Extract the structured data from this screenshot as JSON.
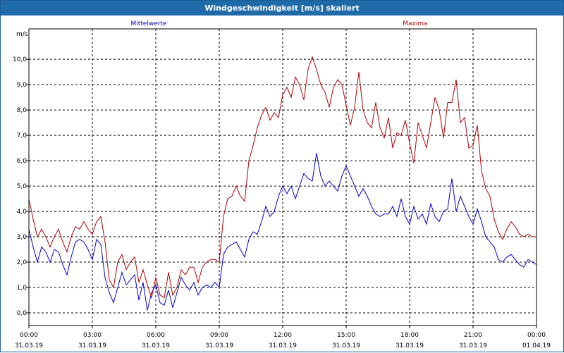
{
  "window": {
    "title": "Windgeschwindigkeit [m/s] skaliert"
  },
  "chart_data": {
    "type": "line",
    "title": "Windgeschwindigkeit [m/s] skaliert",
    "ylabel": "m/s",
    "ylim": [
      -0.5,
      11.2
    ],
    "y_ticks": [
      "0,0",
      "1,0",
      "2,0",
      "3,0",
      "4,0",
      "5,0",
      "6,0",
      "7,0",
      "8,0",
      "9,0",
      "10,0"
    ],
    "x_ticks": [
      {
        "time": "00:00",
        "date": "31.03.19"
      },
      {
        "time": "03:00",
        "date": "31.03.19"
      },
      {
        "time": "06:00",
        "date": "31.03.19"
      },
      {
        "time": "09:00",
        "date": "31.03.19"
      },
      {
        "time": "12:00",
        "date": "31.03.19"
      },
      {
        "time": "15:00",
        "date": "31.03.19"
      },
      {
        "time": "18:00",
        "date": "31.03.19"
      },
      {
        "time": "21:00",
        "date": "31.03.19"
      },
      {
        "time": "00:00",
        "date": "01.04.19"
      }
    ],
    "grid": true,
    "x_unit": "hours since 00:00 31.03.19",
    "series": [
      {
        "name": "Mittelwerte",
        "color": "#0000cc",
        "legend_position": "top-left",
        "values": [
          [
            0.0,
            3.3
          ],
          [
            0.2,
            2.6
          ],
          [
            0.4,
            2.0
          ],
          [
            0.6,
            2.6
          ],
          [
            0.8,
            2.4
          ],
          [
            1.0,
            2.0
          ],
          [
            1.2,
            2.5
          ],
          [
            1.4,
            2.4
          ],
          [
            1.6,
            1.9
          ],
          [
            1.8,
            1.5
          ],
          [
            2.0,
            2.2
          ],
          [
            2.2,
            2.8
          ],
          [
            2.4,
            2.9
          ],
          [
            2.6,
            2.8
          ],
          [
            2.8,
            2.5
          ],
          [
            3.0,
            2.1
          ],
          [
            3.2,
            2.9
          ],
          [
            3.4,
            2.7
          ],
          [
            3.6,
            1.4
          ],
          [
            3.8,
            0.8
          ],
          [
            4.0,
            0.4
          ],
          [
            4.2,
            1.0
          ],
          [
            4.4,
            1.6
          ],
          [
            4.6,
            1.1
          ],
          [
            4.8,
            1.3
          ],
          [
            5.0,
            1.5
          ],
          [
            5.2,
            0.5
          ],
          [
            5.4,
            1.2
          ],
          [
            5.6,
            0.1
          ],
          [
            5.8,
            0.8
          ],
          [
            6.0,
            1.1
          ],
          [
            6.2,
            0.4
          ],
          [
            6.4,
            0.3
          ],
          [
            6.6,
            0.9
          ],
          [
            6.8,
            0.2
          ],
          [
            7.0,
            0.8
          ],
          [
            7.2,
            1.4
          ],
          [
            7.4,
            1.1
          ],
          [
            7.6,
            0.9
          ],
          [
            7.8,
            1.2
          ],
          [
            8.0,
            0.7
          ],
          [
            8.2,
            1.0
          ],
          [
            8.4,
            1.1
          ],
          [
            8.6,
            1.0
          ],
          [
            8.8,
            1.2
          ],
          [
            9.0,
            1.0
          ],
          [
            9.2,
            2.3
          ],
          [
            9.4,
            2.6
          ],
          [
            9.6,
            2.7
          ],
          [
            9.8,
            2.8
          ],
          [
            10.0,
            2.5
          ],
          [
            10.2,
            2.2
          ],
          [
            10.4,
            2.9
          ],
          [
            10.6,
            3.2
          ],
          [
            10.8,
            3.1
          ],
          [
            11.0,
            3.6
          ],
          [
            11.2,
            4.2
          ],
          [
            11.4,
            3.8
          ],
          [
            11.6,
            4.0
          ],
          [
            11.8,
            4.6
          ],
          [
            12.0,
            5.0
          ],
          [
            12.2,
            4.7
          ],
          [
            12.4,
            5.0
          ],
          [
            12.6,
            4.5
          ],
          [
            12.8,
            5.0
          ],
          [
            13.0,
            5.5
          ],
          [
            13.2,
            5.3
          ],
          [
            13.4,
            5.2
          ],
          [
            13.6,
            6.3
          ],
          [
            13.8,
            5.4
          ],
          [
            14.0,
            5.0
          ],
          [
            14.2,
            5.2
          ],
          [
            14.4,
            5.0
          ],
          [
            14.6,
            4.8
          ],
          [
            14.8,
            5.4
          ],
          [
            15.0,
            5.8
          ],
          [
            15.2,
            5.4
          ],
          [
            15.4,
            5.0
          ],
          [
            15.6,
            4.6
          ],
          [
            15.8,
            4.9
          ],
          [
            16.0,
            4.6
          ],
          [
            16.2,
            4.2
          ],
          [
            16.4,
            3.9
          ],
          [
            16.6,
            3.8
          ],
          [
            16.8,
            3.9
          ],
          [
            17.0,
            3.9
          ],
          [
            17.2,
            4.2
          ],
          [
            17.4,
            3.8
          ],
          [
            17.6,
            4.5
          ],
          [
            17.8,
            3.8
          ],
          [
            18.0,
            3.5
          ],
          [
            18.2,
            4.2
          ],
          [
            18.4,
            3.7
          ],
          [
            18.6,
            3.9
          ],
          [
            18.8,
            3.5
          ],
          [
            19.0,
            4.3
          ],
          [
            19.2,
            3.8
          ],
          [
            19.4,
            3.6
          ],
          [
            19.6,
            4.0
          ],
          [
            19.8,
            4.1
          ],
          [
            20.0,
            5.3
          ],
          [
            20.2,
            4.0
          ],
          [
            20.4,
            4.6
          ],
          [
            20.6,
            4.2
          ],
          [
            20.8,
            3.8
          ],
          [
            21.0,
            3.5
          ],
          [
            21.2,
            4.1
          ],
          [
            21.4,
            3.6
          ],
          [
            21.6,
            3.0
          ],
          [
            21.8,
            2.8
          ],
          [
            22.0,
            2.6
          ],
          [
            22.2,
            2.1
          ],
          [
            22.4,
            2.0
          ],
          [
            22.6,
            2.2
          ],
          [
            22.8,
            2.3
          ],
          [
            23.0,
            2.1
          ],
          [
            23.2,
            1.9
          ],
          [
            23.4,
            1.8
          ],
          [
            23.6,
            2.1
          ],
          [
            23.8,
            2.0
          ],
          [
            24.0,
            1.9
          ]
        ]
      },
      {
        "name": "Maxima",
        "color": "#b00000",
        "legend_position": "top-right",
        "values": [
          [
            0.0,
            4.5
          ],
          [
            0.2,
            3.7
          ],
          [
            0.4,
            3.0
          ],
          [
            0.6,
            3.3
          ],
          [
            0.8,
            3.0
          ],
          [
            1.0,
            2.6
          ],
          [
            1.2,
            3.0
          ],
          [
            1.4,
            3.3
          ],
          [
            1.6,
            2.8
          ],
          [
            1.8,
            2.4
          ],
          [
            2.0,
            3.0
          ],
          [
            2.2,
            3.4
          ],
          [
            2.4,
            3.3
          ],
          [
            2.6,
            3.6
          ],
          [
            2.8,
            3.3
          ],
          [
            3.0,
            3.1
          ],
          [
            3.2,
            3.6
          ],
          [
            3.4,
            3.8
          ],
          [
            3.6,
            2.8
          ],
          [
            3.8,
            1.3
          ],
          [
            4.0,
            1.0
          ],
          [
            4.2,
            2.0
          ],
          [
            4.4,
            2.3
          ],
          [
            4.6,
            1.7
          ],
          [
            4.8,
            2.0
          ],
          [
            5.0,
            2.2
          ],
          [
            5.2,
            1.2
          ],
          [
            5.4,
            1.7
          ],
          [
            5.6,
            1.1
          ],
          [
            5.8,
            0.6
          ],
          [
            6.0,
            1.4
          ],
          [
            6.2,
            0.7
          ],
          [
            6.4,
            0.6
          ],
          [
            6.6,
            1.6
          ],
          [
            6.8,
            0.7
          ],
          [
            7.0,
            1.0
          ],
          [
            7.2,
            1.7
          ],
          [
            7.4,
            1.5
          ],
          [
            7.6,
            1.8
          ],
          [
            7.8,
            1.8
          ],
          [
            8.0,
            1.2
          ],
          [
            8.2,
            1.8
          ],
          [
            8.4,
            2.0
          ],
          [
            8.6,
            2.1
          ],
          [
            8.8,
            2.1
          ],
          [
            9.0,
            2.0
          ],
          [
            9.2,
            3.8
          ],
          [
            9.4,
            4.5
          ],
          [
            9.6,
            4.6
          ],
          [
            9.8,
            5.0
          ],
          [
            10.0,
            4.6
          ],
          [
            10.2,
            4.4
          ],
          [
            10.4,
            6.0
          ],
          [
            10.6,
            6.6
          ],
          [
            10.8,
            7.3
          ],
          [
            11.0,
            7.8
          ],
          [
            11.2,
            8.1
          ],
          [
            11.4,
            7.6
          ],
          [
            11.6,
            7.9
          ],
          [
            11.8,
            7.7
          ],
          [
            12.0,
            8.6
          ],
          [
            12.2,
            8.9
          ],
          [
            12.4,
            8.5
          ],
          [
            12.6,
            9.3
          ],
          [
            12.8,
            9.0
          ],
          [
            13.0,
            8.4
          ],
          [
            13.2,
            9.6
          ],
          [
            13.4,
            10.1
          ],
          [
            13.6,
            9.6
          ],
          [
            13.8,
            9.0
          ],
          [
            14.0,
            8.7
          ],
          [
            14.2,
            8.1
          ],
          [
            14.4,
            8.9
          ],
          [
            14.6,
            9.2
          ],
          [
            14.8,
            9.0
          ],
          [
            15.0,
            8.2
          ],
          [
            15.2,
            7.4
          ],
          [
            15.4,
            8.1
          ],
          [
            15.6,
            9.5
          ],
          [
            15.8,
            8.0
          ],
          [
            16.0,
            7.5
          ],
          [
            16.2,
            7.3
          ],
          [
            16.4,
            8.3
          ],
          [
            16.6,
            7.3
          ],
          [
            16.8,
            6.9
          ],
          [
            17.0,
            7.7
          ],
          [
            17.2,
            6.5
          ],
          [
            17.4,
            7.1
          ],
          [
            17.6,
            7.0
          ],
          [
            17.8,
            7.6
          ],
          [
            18.0,
            6.7
          ],
          [
            18.2,
            5.9
          ],
          [
            18.4,
            7.5
          ],
          [
            18.6,
            7.0
          ],
          [
            18.8,
            6.5
          ],
          [
            19.0,
            7.5
          ],
          [
            19.2,
            8.5
          ],
          [
            19.4,
            8.0
          ],
          [
            19.6,
            6.9
          ],
          [
            19.8,
            8.3
          ],
          [
            20.0,
            8.3
          ],
          [
            20.2,
            9.2
          ],
          [
            20.4,
            7.5
          ],
          [
            20.6,
            7.7
          ],
          [
            20.8,
            6.5
          ],
          [
            21.0,
            6.6
          ],
          [
            21.2,
            7.4
          ],
          [
            21.4,
            5.6
          ],
          [
            21.6,
            4.9
          ],
          [
            21.8,
            4.6
          ],
          [
            22.0,
            3.7
          ],
          [
            22.2,
            3.2
          ],
          [
            22.4,
            2.9
          ],
          [
            22.6,
            3.3
          ],
          [
            22.8,
            3.6
          ],
          [
            23.0,
            3.4
          ],
          [
            23.2,
            3.1
          ],
          [
            23.4,
            3.0
          ],
          [
            23.6,
            3.1
          ],
          [
            23.8,
            3.0
          ],
          [
            24.0,
            3.0
          ]
        ]
      }
    ]
  }
}
